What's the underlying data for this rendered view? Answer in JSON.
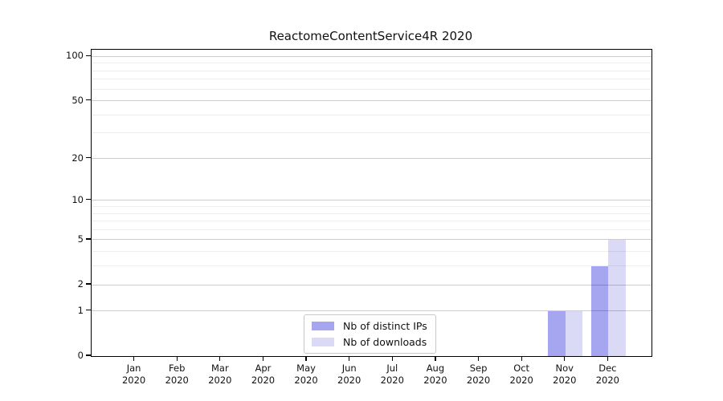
{
  "chart_data": {
    "type": "bar",
    "title": "ReactomeContentService4R 2020",
    "categories": [
      "Jan 2020",
      "Feb 2020",
      "Mar 2020",
      "Apr 2020",
      "May 2020",
      "Jun 2020",
      "Jul 2020",
      "Aug 2020",
      "Sep 2020",
      "Oct 2020",
      "Nov 2020",
      "Dec 2020"
    ],
    "series": [
      {
        "name": "Nb of distinct IPs",
        "color": "#a6a6f0",
        "values": [
          0,
          0,
          0,
          0,
          0,
          0,
          0,
          0,
          0,
          0,
          1,
          3
        ]
      },
      {
        "name": "Nb of downloads",
        "color": "#dadaf6",
        "values": [
          0,
          0,
          0,
          0,
          0,
          0,
          0,
          0,
          0,
          0,
          1,
          5
        ]
      }
    ],
    "xlabel": "",
    "ylabel": "",
    "y_scale": "log10(1+x)",
    "ylim": [
      0,
      111
    ],
    "y_tick_labels": [
      "0",
      "1",
      "2",
      "5",
      "10",
      "20",
      "50",
      "100"
    ],
    "y_ticks": [
      0,
      1,
      2,
      5,
      10,
      20,
      50,
      100
    ],
    "y_minor_gridlines": [
      3,
      4,
      6,
      7,
      8,
      9,
      30,
      40,
      60,
      70,
      80,
      90
    ],
    "grid": true,
    "legend_position": "lower center"
  },
  "colors": {
    "distinct_ips": "#a6a6f0",
    "downloads": "#dadaf6",
    "major_grid": "#cccccc",
    "minor_grid": "#ededed",
    "axis": "#000000"
  }
}
